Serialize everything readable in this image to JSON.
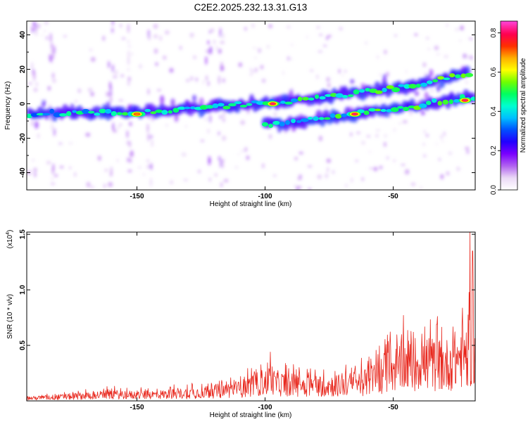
{
  "title": "C2E2.2025.232.13.31.G13",
  "chart_data": [
    {
      "type": "heatmap",
      "title": "C2E2.2025.232.13.31.G13",
      "xlabel": "Height of straight line (km)",
      "ylabel": "Frequency (Hz)",
      "xlim": [
        -193,
        -18
      ],
      "ylim": [
        -50,
        48
      ],
      "xticks": [
        -150,
        -100,
        -50
      ],
      "yticks": [
        40,
        20,
        0,
        -20,
        -40
      ],
      "colorbar": {
        "label": "Normalized spectral amplitude",
        "range": [
          0,
          0.86
        ],
        "ticks": [
          0.0,
          0.2,
          0.4,
          0.6,
          0.8
        ],
        "colors": [
          "#ffffff",
          "#ead8f6",
          "#b060f0",
          "#7a00ff",
          "#2200ff",
          "#0050ff",
          "#00c0ff",
          "#00ffd0",
          "#00ff60",
          "#70ff00",
          "#ffff00",
          "#ffb000",
          "#ff3000",
          "#ff0050",
          "#ff40d0"
        ]
      },
      "traces": [
        {
          "name": "upper branch",
          "points": [
            {
              "x": -192,
              "y": -6
            },
            {
              "x": -175,
              "y": -5
            },
            {
              "x": -160,
              "y": -5
            },
            {
              "x": -150,
              "y": -5
            },
            {
              "x": -135,
              "y": -4
            },
            {
              "x": -125,
              "y": -3
            },
            {
              "x": -115,
              "y": -1
            },
            {
              "x": -105,
              "y": 0
            },
            {
              "x": -95,
              "y": 1
            },
            {
              "x": -85,
              "y": 2
            },
            {
              "x": -75,
              "y": 4
            },
            {
              "x": -65,
              "y": 6
            },
            {
              "x": -55,
              "y": 8
            },
            {
              "x": -45,
              "y": 10
            },
            {
              "x": -35,
              "y": 13
            },
            {
              "x": -25,
              "y": 16
            },
            {
              "x": -20,
              "y": 18
            }
          ]
        },
        {
          "name": "lower branch",
          "points": [
            {
              "x": -100,
              "y": -12
            },
            {
              "x": -90,
              "y": -11
            },
            {
              "x": -80,
              "y": -9
            },
            {
              "x": -70,
              "y": -7
            },
            {
              "x": -60,
              "y": -5
            },
            {
              "x": -50,
              "y": -3
            },
            {
              "x": -40,
              "y": -1
            },
            {
              "x": -30,
              "y": 2
            },
            {
              "x": -18,
              "y": 4
            }
          ]
        }
      ],
      "hotspots": [
        {
          "x": -97,
          "y": 0,
          "value": 0.82
        },
        {
          "x": -65,
          "y": -6,
          "value": 0.82
        },
        {
          "x": -22,
          "y": 2,
          "value": 0.82
        },
        {
          "x": -150,
          "y": -6,
          "value": 0.7
        }
      ]
    },
    {
      "type": "line",
      "xlabel": "Height of straight line (km)",
      "ylabel": "SNR (10 * v/v)",
      "scale_label": "(x10",
      "scale_exponent": "4",
      "xlim": [
        -193,
        -18
      ],
      "ylim": [
        0,
        1.52
      ],
      "xticks": [
        -150,
        -100,
        -50
      ],
      "yticks": [
        0.5,
        1.0,
        1.5
      ],
      "series": [
        {
          "name": "SNR",
          "color": "#e8281e",
          "envelope": [
            {
              "x": -193,
              "value": 0.04
            },
            {
              "x": -180,
              "value": 0.06
            },
            {
              "x": -170,
              "value": 0.08
            },
            {
              "x": -160,
              "value": 0.1
            },
            {
              "x": -150,
              "value": 0.09
            },
            {
              "x": -140,
              "value": 0.1
            },
            {
              "x": -130,
              "value": 0.12
            },
            {
              "x": -120,
              "value": 0.15
            },
            {
              "x": -110,
              "value": 0.18
            },
            {
              "x": -100,
              "value": 0.3
            },
            {
              "x": -90,
              "value": 0.25
            },
            {
              "x": -80,
              "value": 0.24
            },
            {
              "x": -70,
              "value": 0.24
            },
            {
              "x": -60,
              "value": 0.3
            },
            {
              "x": -50,
              "value": 0.5
            },
            {
              "x": -40,
              "value": 0.6
            },
            {
              "x": -30,
              "value": 0.55
            },
            {
              "x": -25,
              "value": 0.65
            },
            {
              "x": -20,
              "value": 0.8
            },
            {
              "x": -18,
              "value": 0.7
            }
          ],
          "peaks": [
            {
              "x": -98,
              "value": 0.44
            },
            {
              "x": -46,
              "value": 0.77
            },
            {
              "x": -33,
              "value": 0.69
            },
            {
              "x": -20,
              "value": 1.52
            },
            {
              "x": -19,
              "value": 1.35
            }
          ]
        }
      ]
    }
  ]
}
